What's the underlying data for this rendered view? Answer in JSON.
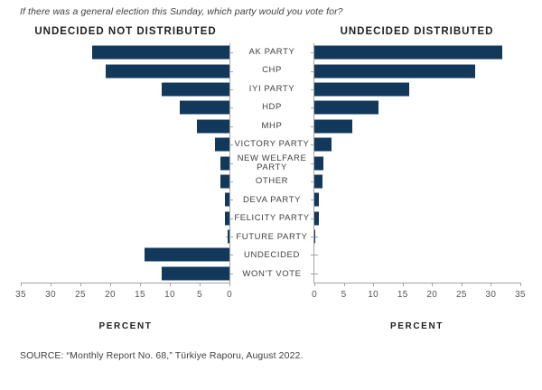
{
  "title": "If there was a general election this Sunday, which party would you vote for?",
  "source": "SOURCE: “Monthly Report No. 68,” Türkiye Raporu, August 2022.",
  "colors": {
    "bar": "#12395c",
    "axis": "#a3a3a3"
  },
  "panels": [
    {
      "header": "UNDECIDED NOT DISTRIBUTED",
      "xlabel": "PERCENT"
    },
    {
      "header": "UNDECIDED DISTRIBUTED",
      "xlabel": "PERCENT"
    }
  ],
  "chart_data": {
    "type": "bar",
    "orientation": "horizontal",
    "title": "If there was a general election this Sunday, which party would you vote for?",
    "categories": [
      "AK PARTY",
      "CHP",
      "IYI PARTY",
      "HDP",
      "MHP",
      "VICTORY PARTY",
      "NEW WELFARE PARTY",
      "OTHER",
      "DEVA PARTY",
      "FELICITY PARTY",
      "FUTURE PARTY",
      "UNDECIDED",
      "WON'T VOTE"
    ],
    "series": [
      {
        "name": "UNDECIDED NOT DISTRIBUTED",
        "axis_direction": "right-to-left",
        "values": [
          23.0,
          20.8,
          11.4,
          8.3,
          5.5,
          2.4,
          1.5,
          1.5,
          0.8,
          0.8,
          0.3,
          14.3,
          11.4
        ]
      },
      {
        "name": "UNDECIDED DISTRIBUTED",
        "axis_direction": "left-to-right",
        "values": [
          32.0,
          27.4,
          16.1,
          10.9,
          6.5,
          2.9,
          1.5,
          1.4,
          0.7,
          0.7,
          0.2,
          0,
          0
        ]
      }
    ],
    "xlabel": "PERCENT",
    "xlim": [
      0,
      35
    ],
    "xticks": [
      0,
      5,
      10,
      15,
      20,
      25,
      30,
      35
    ],
    "grid": false,
    "legend_position": "none"
  }
}
